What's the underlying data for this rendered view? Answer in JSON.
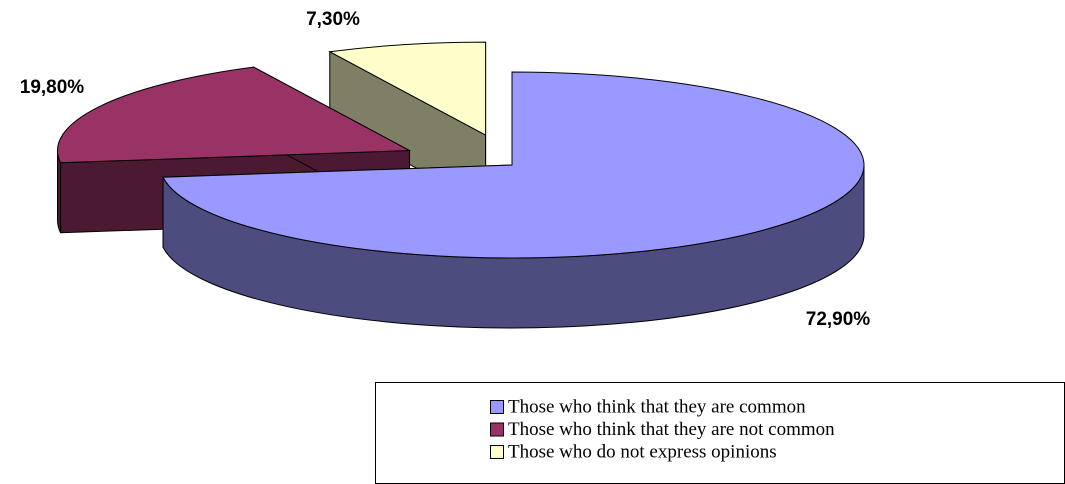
{
  "chart_data": {
    "type": "pie3d",
    "categories": [
      "Those who think that they are common",
      "Those who think that they are not common",
      "Those who do not express opinions"
    ],
    "values": [
      72.9,
      19.8,
      7.3
    ],
    "value_labels": [
      "72,90%",
      "19,80%",
      "7,30%"
    ],
    "colors": [
      "#9999ff",
      "#993366",
      "#ffffcc"
    ],
    "legend": "bottom-right"
  }
}
